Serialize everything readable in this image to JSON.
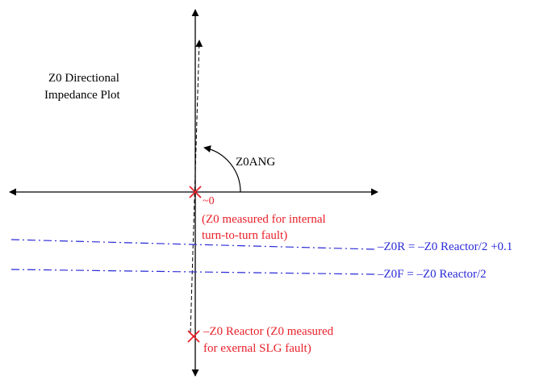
{
  "title_lines": [
    "Z0 Directional",
    "Impedance Plot"
  ],
  "angle_label": "Z0ANG",
  "origin_label": "~0",
  "internal_fault_lines": [
    "(Z0 measured for internal",
    "turn-to-turn fault)"
  ],
  "z0r_label": "–Z0R = –Z0 Reactor/2 +0.1",
  "z0f_label": "–Z0F = –Z0 Reactor/2",
  "reactor_lines": [
    "–Z0 Reactor (Z0 measured",
    "for exernal SLG fault)"
  ],
  "colors": {
    "axis": "#000000",
    "fault": "#e8202a",
    "threshold": "#2a2ad8"
  }
}
